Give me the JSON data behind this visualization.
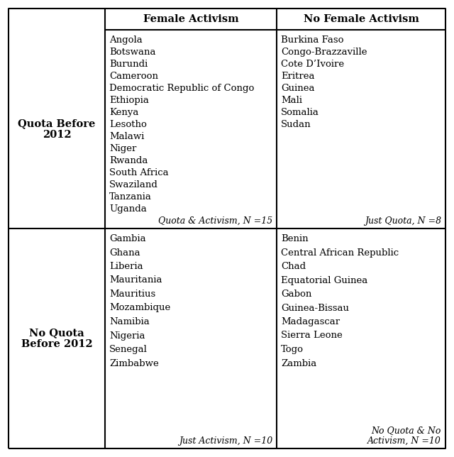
{
  "col_headers": [
    "Female Activism",
    "No Female Activism"
  ],
  "row_headers": [
    "Quota Before\n2012",
    "No Quota\nBefore 2012"
  ],
  "cells": {
    "top_left": [
      "Angola",
      "Botswana",
      "Burundi",
      "Cameroon",
      "Democratic Republic of Congo",
      "Ethiopia",
      "Kenya",
      "Lesotho",
      "Malawi",
      "Niger",
      "Rwanda",
      "South Africa",
      "Swaziland",
      "Tanzania",
      "Uganda"
    ],
    "top_right": [
      "Burkina Faso",
      "Congo-Brazzaville",
      "Cote D’Ivoire",
      "Eritrea",
      "Guinea",
      "Mali",
      "Somalia",
      "Sudan"
    ],
    "bottom_left": [
      "Gambia",
      "Ghana",
      "Liberia",
      "Mauritania",
      "Mauritius",
      "Mozambique",
      "Namibia",
      "Nigeria",
      "Senegal",
      "Zimbabwe"
    ],
    "bottom_right": [
      "Benin",
      "Central African Republic",
      "Chad",
      "Equatorial Guinea",
      "Gabon",
      "Guinea-Bissau",
      "Madagascar",
      "Sierra Leone",
      "Togo",
      "Zambia"
    ]
  },
  "labels": {
    "top_left": "Quota & Activism, N =15",
    "top_right": "Just Quota, N =8",
    "bottom_left": "Just Activism, N =10",
    "bottom_right": "No Quota & No\nActivism, N =10"
  },
  "bg_color": "#ffffff",
  "text_color": "#000000",
  "header_font_size": 10.5,
  "cell_font_size": 9.5,
  "label_font_size": 9.0,
  "row_header_font_size": 10.5
}
